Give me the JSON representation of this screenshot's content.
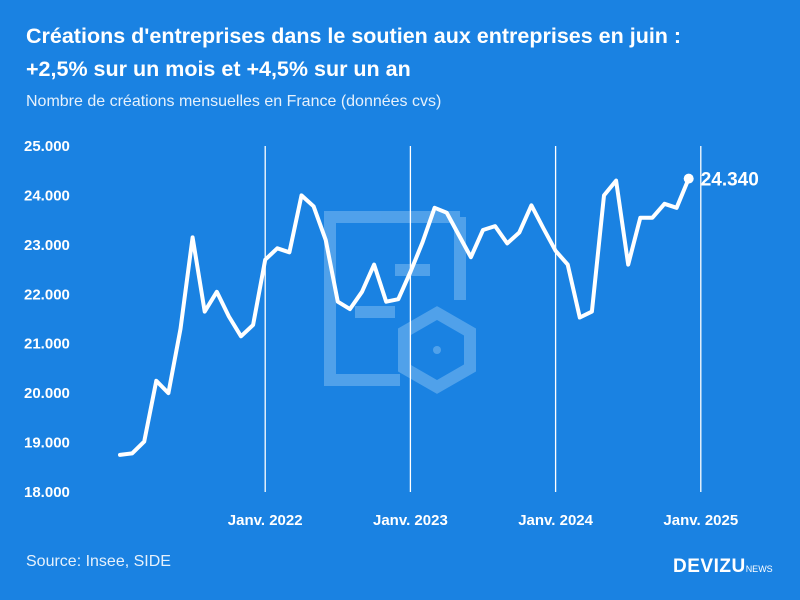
{
  "title_line1": "Créations d'entreprises dans le soutien aux entreprises en juin :",
  "title_line2": "+2,5% sur un mois et +4,5% sur un an",
  "subtitle": "Nombre de créations mensuelles en France (données cvs)",
  "source": "Source: Insee, SIDE",
  "brand": {
    "name": "DEVIZU",
    "suffix": "NEWS"
  },
  "colors": {
    "background": "#1a82e2",
    "line": "#ffffff",
    "watermark": "#5aa7ec"
  },
  "watermark_icon": "devizu-logo-watermark",
  "chart_data": {
    "type": "line",
    "title": "Créations d'entreprises dans le soutien aux entreprises en juin : +2,5% sur un mois et +4,5% sur un an",
    "ylim": [
      18000,
      25000
    ],
    "yticks": [
      18000,
      19000,
      20000,
      21000,
      22000,
      23000,
      24000,
      25000
    ],
    "ytick_labels": [
      "18.000",
      "19.000",
      "20.000",
      "21.000",
      "22.000",
      "23.000",
      "24.000",
      "25.000"
    ],
    "xticks": [
      {
        "date": "2022-01",
        "label": "Janv. 2022"
      },
      {
        "date": "2023-01",
        "label": "Janv. 2023"
      },
      {
        "date": "2024-01",
        "label": "Janv. 2024"
      },
      {
        "date": "2025-01",
        "label": "Janv. 2025"
      }
    ],
    "grid": "vertical at January ticks",
    "last_value_label": "24.340",
    "series": [
      {
        "dates": [
          "2021-01",
          "2021-02",
          "2021-03",
          "2021-04",
          "2021-05",
          "2021-06",
          "2021-07",
          "2021-08",
          "2021-09",
          "2021-10",
          "2021-11",
          "2021-12",
          "2022-01",
          "2022-02",
          "2022-03",
          "2022-04",
          "2022-05",
          "2022-06",
          "2022-07",
          "2022-08",
          "2022-09",
          "2022-10",
          "2022-11",
          "2022-12",
          "2023-01",
          "2023-02",
          "2023-03",
          "2023-04",
          "2023-05",
          "2023-06",
          "2023-07",
          "2023-08",
          "2023-09",
          "2023-10",
          "2023-11",
          "2023-12",
          "2024-01",
          "2024-02",
          "2024-03",
          "2024-04",
          "2024-05",
          "2024-06",
          "2024-07",
          "2024-08",
          "2024-09",
          "2024-10",
          "2024-11",
          "2024-12",
          "2025-01",
          "2025-02",
          "2025-03",
          "2025-04",
          "2025-05",
          "2025-06"
        ],
        "values": [
          18750,
          18780,
          19020,
          20250,
          20000,
          21300,
          23150,
          21650,
          22050,
          21550,
          21150,
          21380,
          22700,
          22930,
          22850,
          24000,
          23780,
          23100,
          21850,
          21700,
          22050,
          22600,
          21850,
          21900,
          22450,
          23050,
          23750,
          23650,
          23200,
          22750,
          23300,
          23380,
          23030,
          23250,
          23800,
          23330,
          22880,
          22600,
          21530,
          21650,
          24000,
          24300,
          22600,
          23550,
          23550,
          23830,
          23750,
          24340,
          null,
          null,
          null,
          null,
          null,
          null
        ]
      }
    ]
  }
}
